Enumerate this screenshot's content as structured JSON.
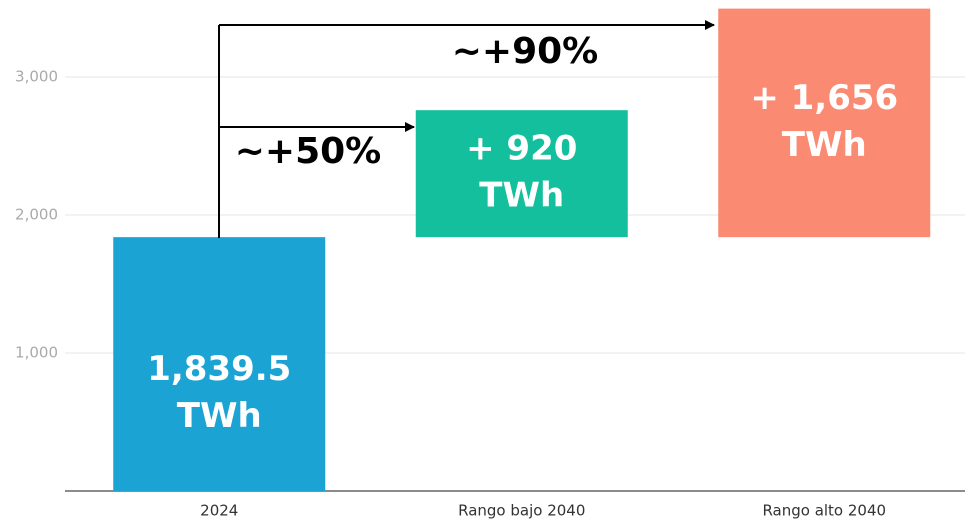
{
  "chart_data": {
    "type": "waterfall",
    "categories": [
      "2024",
      "Rango bajo 2040",
      "Rango alto 2040"
    ],
    "values": [
      1839.5,
      920,
      1656
    ],
    "value_labels": [
      [
        "1,839.5",
        "TWh"
      ],
      [
        "+ 920",
        "TWh"
      ],
      [
        "+ 1,656",
        "TWh"
      ]
    ],
    "colors": [
      "#1ba3d3",
      "#13bf9c",
      "#fa8a72"
    ],
    "ylim": [
      0,
      3500
    ],
    "yticks": [
      {
        "value": 1000,
        "label": "1,000"
      },
      {
        "value": 2000,
        "label": "2,000"
      },
      {
        "value": 3000,
        "label": "3,000"
      }
    ],
    "grid": true,
    "annotations": [
      "~+50%",
      "~+90%"
    ]
  }
}
